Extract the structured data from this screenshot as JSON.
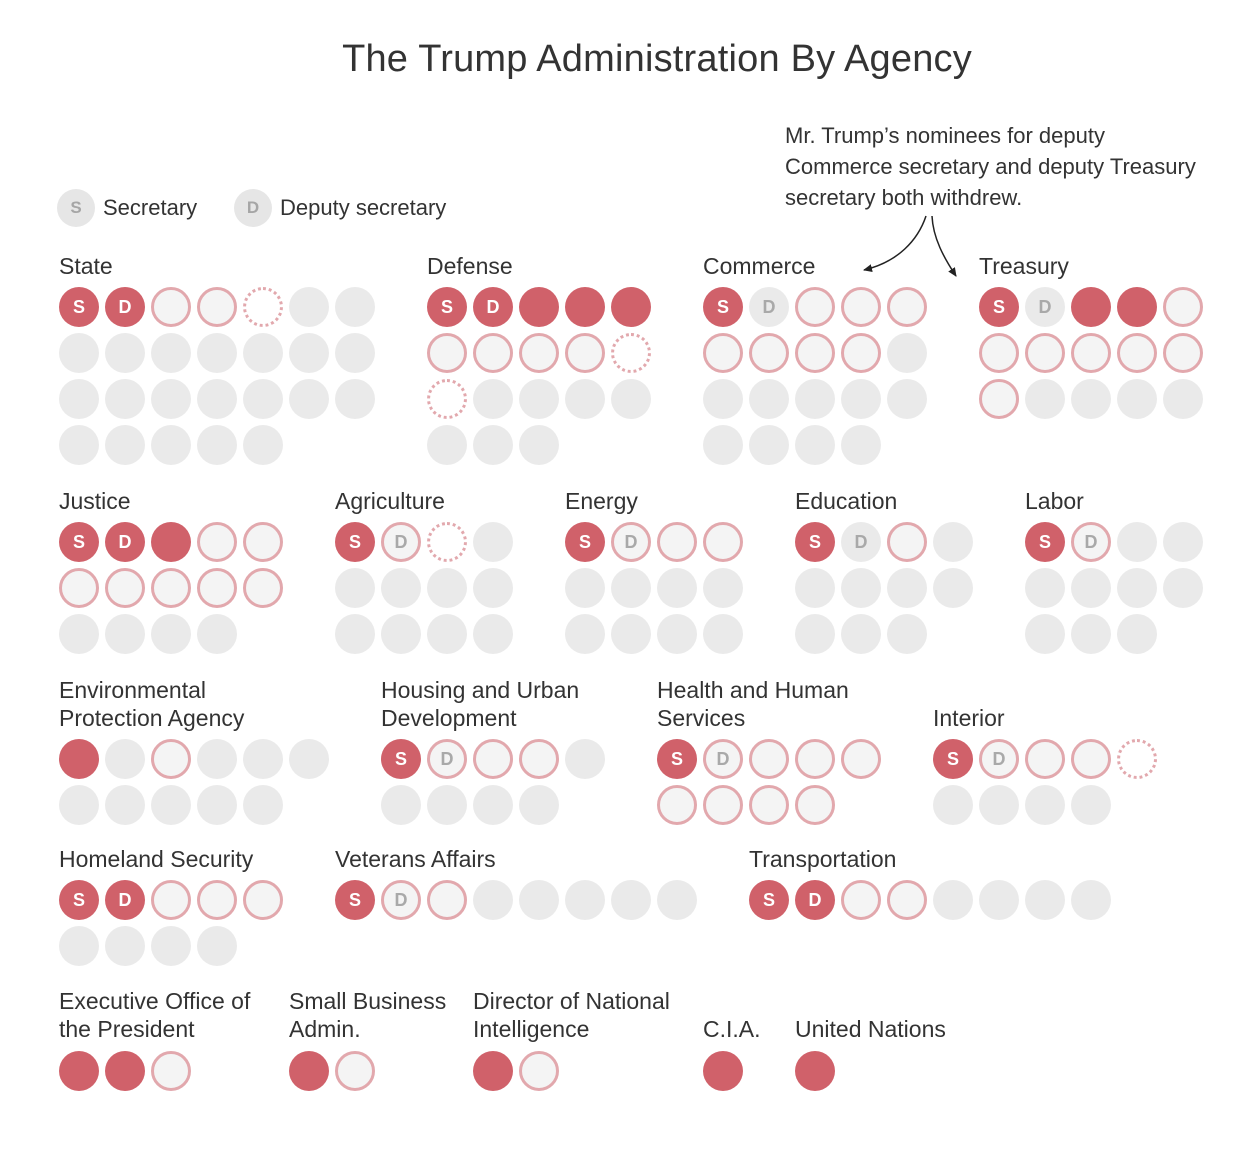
{
  "title": "The Trump Administration By Agency",
  "legend": [
    {
      "letter": "S",
      "label": "Secretary"
    },
    {
      "letter": "D",
      "label": "Deputy secretary"
    }
  ],
  "annotation": "Mr. Trump’s nominees for deputy Commerce secretary and deputy Treasury secretary both withdrew.",
  "colors": {
    "confirmed": "#d0616a",
    "nominee_ring": "#e2a8ad",
    "vacant": "#eaeaea",
    "text": "#333333"
  },
  "chart_data": {
    "type": "dot-grid",
    "title": "The Trump Administration By Agency",
    "status_values": [
      "confirmed",
      "nominee",
      "withdrawn",
      "vacant"
    ],
    "agencies": [
      {
        "name": "State",
        "positions": [
          [
            "confirmed",
            "S"
          ],
          [
            "confirmed",
            "D"
          ],
          [
            "nominee",
            ""
          ],
          [
            "nominee",
            ""
          ],
          [
            "withdrawn",
            ""
          ],
          [
            "vacant",
            ""
          ],
          [
            "vacant",
            ""
          ],
          [
            "vacant",
            ""
          ],
          [
            "vacant",
            ""
          ],
          [
            "vacant",
            ""
          ],
          [
            "vacant",
            ""
          ],
          [
            "vacant",
            ""
          ],
          [
            "vacant",
            ""
          ],
          [
            "vacant",
            ""
          ],
          [
            "vacant",
            ""
          ],
          [
            "vacant",
            ""
          ],
          [
            "vacant",
            ""
          ],
          [
            "vacant",
            ""
          ],
          [
            "vacant",
            ""
          ],
          [
            "vacant",
            ""
          ],
          [
            "vacant",
            ""
          ],
          [
            "vacant",
            ""
          ],
          [
            "vacant",
            ""
          ],
          [
            "vacant",
            ""
          ],
          [
            "vacant",
            ""
          ],
          [
            "vacant",
            ""
          ]
        ]
      },
      {
        "name": "Defense",
        "positions": [
          [
            "confirmed",
            "S"
          ],
          [
            "confirmed",
            "D"
          ],
          [
            "confirmed",
            ""
          ],
          [
            "confirmed",
            ""
          ],
          [
            "confirmed",
            ""
          ],
          [
            "nominee",
            ""
          ],
          [
            "nominee",
            ""
          ],
          [
            "nominee",
            ""
          ],
          [
            "nominee",
            ""
          ],
          [
            "withdrawn",
            ""
          ],
          [
            "withdrawn",
            ""
          ],
          [
            "vacant",
            ""
          ],
          [
            "vacant",
            ""
          ],
          [
            "vacant",
            ""
          ],
          [
            "vacant",
            ""
          ],
          [
            "vacant",
            ""
          ],
          [
            "vacant",
            ""
          ],
          [
            "vacant",
            ""
          ]
        ]
      },
      {
        "name": "Commerce",
        "positions": [
          [
            "confirmed",
            "S"
          ],
          [
            "vacant",
            "D"
          ],
          [
            "nominee",
            ""
          ],
          [
            "nominee",
            ""
          ],
          [
            "nominee",
            ""
          ],
          [
            "nominee",
            ""
          ],
          [
            "nominee",
            ""
          ],
          [
            "nominee",
            ""
          ],
          [
            "nominee",
            ""
          ],
          [
            "vacant",
            ""
          ],
          [
            "vacant",
            ""
          ],
          [
            "vacant",
            ""
          ],
          [
            "vacant",
            ""
          ],
          [
            "vacant",
            ""
          ],
          [
            "vacant",
            ""
          ],
          [
            "vacant",
            ""
          ],
          [
            "vacant",
            ""
          ],
          [
            "vacant",
            ""
          ],
          [
            "vacant",
            ""
          ]
        ]
      },
      {
        "name": "Treasury",
        "positions": [
          [
            "confirmed",
            "S"
          ],
          [
            "vacant",
            "D"
          ],
          [
            "confirmed",
            ""
          ],
          [
            "confirmed",
            ""
          ],
          [
            "nominee",
            ""
          ],
          [
            "nominee",
            ""
          ],
          [
            "nominee",
            ""
          ],
          [
            "nominee",
            ""
          ],
          [
            "nominee",
            ""
          ],
          [
            "nominee",
            ""
          ],
          [
            "nominee",
            ""
          ],
          [
            "vacant",
            ""
          ],
          [
            "vacant",
            ""
          ],
          [
            "vacant",
            ""
          ],
          [
            "vacant",
            ""
          ]
        ]
      },
      {
        "name": "Justice",
        "positions": [
          [
            "confirmed",
            "S"
          ],
          [
            "confirmed",
            "D"
          ],
          [
            "confirmed",
            ""
          ],
          [
            "nominee",
            ""
          ],
          [
            "nominee",
            ""
          ],
          [
            "nominee",
            ""
          ],
          [
            "nominee",
            ""
          ],
          [
            "nominee",
            ""
          ],
          [
            "nominee",
            ""
          ],
          [
            "nominee",
            ""
          ],
          [
            "vacant",
            ""
          ],
          [
            "vacant",
            ""
          ],
          [
            "vacant",
            ""
          ],
          [
            "vacant",
            ""
          ]
        ]
      },
      {
        "name": "Agriculture",
        "positions": [
          [
            "confirmed",
            "S"
          ],
          [
            "nominee",
            "D"
          ],
          [
            "withdrawn",
            ""
          ],
          [
            "vacant",
            ""
          ],
          [
            "vacant",
            ""
          ],
          [
            "vacant",
            ""
          ],
          [
            "vacant",
            ""
          ],
          [
            "vacant",
            ""
          ],
          [
            "vacant",
            ""
          ],
          [
            "vacant",
            ""
          ],
          [
            "vacant",
            ""
          ],
          [
            "vacant",
            ""
          ]
        ]
      },
      {
        "name": "Energy",
        "positions": [
          [
            "confirmed",
            "S"
          ],
          [
            "nominee",
            "D"
          ],
          [
            "nominee",
            ""
          ],
          [
            "nominee",
            ""
          ],
          [
            "vacant",
            ""
          ],
          [
            "vacant",
            ""
          ],
          [
            "vacant",
            ""
          ],
          [
            "vacant",
            ""
          ],
          [
            "vacant",
            ""
          ],
          [
            "vacant",
            ""
          ],
          [
            "vacant",
            ""
          ],
          [
            "vacant",
            ""
          ]
        ]
      },
      {
        "name": "Education",
        "positions": [
          [
            "confirmed",
            "S"
          ],
          [
            "vacant",
            "D"
          ],
          [
            "nominee",
            ""
          ],
          [
            "vacant",
            ""
          ],
          [
            "vacant",
            ""
          ],
          [
            "vacant",
            ""
          ],
          [
            "vacant",
            ""
          ],
          [
            "vacant",
            ""
          ],
          [
            "vacant",
            ""
          ],
          [
            "vacant",
            ""
          ],
          [
            "vacant",
            ""
          ]
        ]
      },
      {
        "name": "Labor",
        "positions": [
          [
            "confirmed",
            "S"
          ],
          [
            "nominee",
            "D"
          ],
          [
            "vacant",
            ""
          ],
          [
            "vacant",
            ""
          ],
          [
            "vacant",
            ""
          ],
          [
            "vacant",
            ""
          ],
          [
            "vacant",
            ""
          ],
          [
            "vacant",
            ""
          ],
          [
            "vacant",
            ""
          ],
          [
            "vacant",
            ""
          ],
          [
            "vacant",
            ""
          ]
        ]
      },
      {
        "name": "Environmental Protection Agency",
        "label_lines": [
          "Environmental",
          "Protection Agency"
        ],
        "positions": [
          [
            "confirmed",
            ""
          ],
          [
            "vacant",
            ""
          ],
          [
            "nominee",
            ""
          ],
          [
            "vacant",
            ""
          ],
          [
            "vacant",
            ""
          ],
          [
            "vacant",
            ""
          ],
          [
            "vacant",
            ""
          ],
          [
            "vacant",
            ""
          ],
          [
            "vacant",
            ""
          ],
          [
            "vacant",
            ""
          ],
          [
            "vacant",
            ""
          ]
        ]
      },
      {
        "name": "Housing and Urban Development",
        "label_lines": [
          "Housing and Urban",
          "Development"
        ],
        "positions": [
          [
            "confirmed",
            "S"
          ],
          [
            "nominee",
            "D"
          ],
          [
            "nominee",
            ""
          ],
          [
            "nominee",
            ""
          ],
          [
            "vacant",
            ""
          ],
          [
            "vacant",
            ""
          ],
          [
            "vacant",
            ""
          ],
          [
            "vacant",
            ""
          ],
          [
            "vacant",
            ""
          ]
        ]
      },
      {
        "name": "Health and Human Services",
        "label_lines": [
          "Health and Human",
          "Services"
        ],
        "positions": [
          [
            "confirmed",
            "S"
          ],
          [
            "nominee",
            "D"
          ],
          [
            "nominee",
            ""
          ],
          [
            "nominee",
            ""
          ],
          [
            "nominee",
            ""
          ],
          [
            "nominee",
            ""
          ],
          [
            "nominee",
            ""
          ],
          [
            "nominee",
            ""
          ],
          [
            "nominee",
            ""
          ]
        ]
      },
      {
        "name": "Interior",
        "positions": [
          [
            "confirmed",
            "S"
          ],
          [
            "nominee",
            "D"
          ],
          [
            "nominee",
            ""
          ],
          [
            "nominee",
            ""
          ],
          [
            "withdrawn",
            ""
          ],
          [
            "vacant",
            ""
          ],
          [
            "vacant",
            ""
          ],
          [
            "vacant",
            ""
          ],
          [
            "vacant",
            ""
          ]
        ]
      },
      {
        "name": "Homeland Security",
        "positions": [
          [
            "confirmed",
            "S"
          ],
          [
            "confirmed",
            "D"
          ],
          [
            "nominee",
            ""
          ],
          [
            "nominee",
            ""
          ],
          [
            "nominee",
            ""
          ],
          [
            "vacant",
            ""
          ],
          [
            "vacant",
            ""
          ],
          [
            "vacant",
            ""
          ],
          [
            "vacant",
            ""
          ]
        ]
      },
      {
        "name": "Veterans Affairs",
        "positions": [
          [
            "confirmed",
            "S"
          ],
          [
            "nominee",
            "D"
          ],
          [
            "nominee",
            ""
          ],
          [
            "vacant",
            ""
          ],
          [
            "vacant",
            ""
          ],
          [
            "vacant",
            ""
          ],
          [
            "vacant",
            ""
          ],
          [
            "vacant",
            ""
          ]
        ]
      },
      {
        "name": "Transportation",
        "positions": [
          [
            "confirmed",
            "S"
          ],
          [
            "confirmed",
            "D"
          ],
          [
            "nominee",
            ""
          ],
          [
            "nominee",
            ""
          ],
          [
            "vacant",
            ""
          ],
          [
            "vacant",
            ""
          ],
          [
            "vacant",
            ""
          ],
          [
            "vacant",
            ""
          ]
        ]
      },
      {
        "name": "Executive Office of the President",
        "label_lines": [
          "Executive Office of",
          "the President"
        ],
        "positions": [
          [
            "confirmed",
            ""
          ],
          [
            "confirmed",
            ""
          ],
          [
            "nominee",
            ""
          ]
        ]
      },
      {
        "name": "Small Business Admin.",
        "label_lines": [
          "Small Business",
          "Admin."
        ],
        "positions": [
          [
            "confirmed",
            ""
          ],
          [
            "nominee",
            ""
          ]
        ]
      },
      {
        "name": "Director of National Intelligence",
        "label_lines": [
          "Director of National",
          "Intelligence"
        ],
        "positions": [
          [
            "confirmed",
            ""
          ],
          [
            "nominee",
            ""
          ]
        ]
      },
      {
        "name": "C.I.A.",
        "positions": [
          [
            "confirmed",
            ""
          ]
        ]
      },
      {
        "name": "United Nations",
        "positions": [
          [
            "confirmed",
            ""
          ]
        ]
      }
    ]
  }
}
